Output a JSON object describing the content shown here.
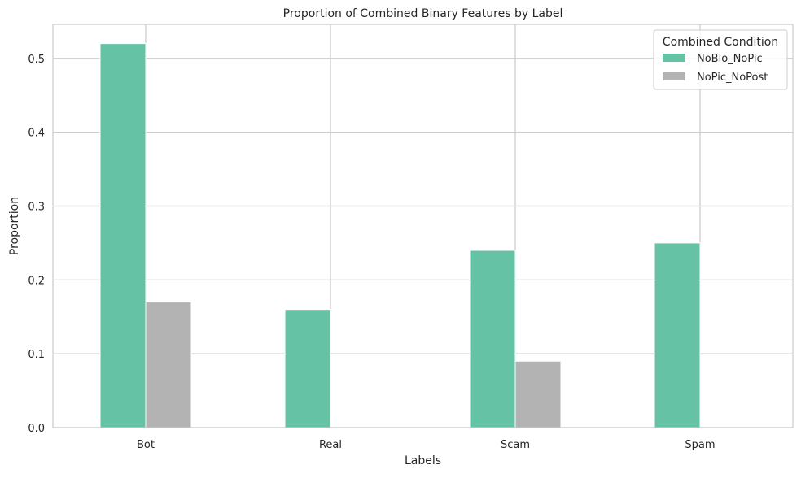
{
  "chart_data": {
    "type": "bar",
    "title": "Proportion of Combined Binary Features by Label",
    "xlabel": "Labels",
    "ylabel": "Proportion",
    "categories": [
      "Bot",
      "Real",
      "Scam",
      "Spam"
    ],
    "series": [
      {
        "name": "NoBio_NoPic",
        "values": [
          0.52,
          0.16,
          0.24,
          0.25
        ],
        "color": "#66c2a5"
      },
      {
        "name": "NoPic_NoPost",
        "values": [
          0.17,
          0.0,
          0.09,
          0.0
        ],
        "color": "#b3b3b3"
      }
    ],
    "ylim": [
      0,
      0.546
    ],
    "yticks": [
      "0.0",
      "0.1",
      "0.2",
      "0.3",
      "0.4",
      "0.5"
    ],
    "grid": true,
    "legend": {
      "title": "Combined Condition",
      "placement": "top-right"
    }
  }
}
